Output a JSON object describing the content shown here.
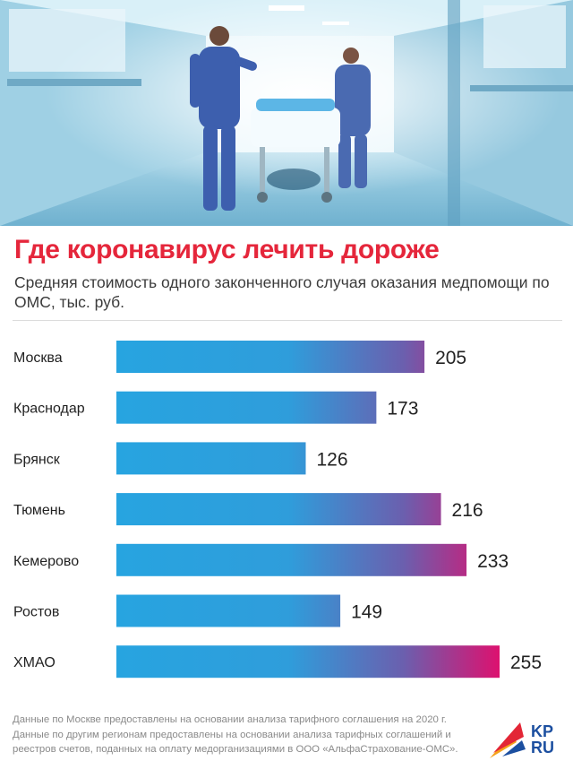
{
  "header": {
    "title": "Где коронавирус лечить дороже",
    "subtitle": "Средняя стоимость одного законченного случая оказания медпомощи по ОМС, тыс. руб."
  },
  "chart_data": {
    "type": "bar",
    "orientation": "horizontal",
    "categories": [
      "Москва",
      "Краснодар",
      "Брянск",
      "Тюмень",
      "Кемерово",
      "Ростов",
      "ХМАО"
    ],
    "values": [
      205,
      173,
      126,
      216,
      233,
      149,
      255
    ],
    "title": "Где коронавирус лечить дороже",
    "subtitle": "Средняя стоимость одного законченного случая оказания медпомощи по ОМС, тыс. руб.",
    "xlabel": "",
    "ylabel": "",
    "xlim": [
      0,
      255
    ],
    "grid": false,
    "legend": "none",
    "colors": {
      "bar_start": "#27a4e0",
      "bar_mid": "#2f9ddb",
      "bar_end": "#dd116f"
    }
  },
  "footnote": {
    "line1": "Данные по Москве предоставлены на основании анализа тарифного соглашения на 2020 г.",
    "line2": "Данные по другим регионам предоставлены на основании анализа тарифных соглашений и реестров счетов, поданных на оплату медорганизациями в ООО «АльфаСтрахование-ОМС»."
  },
  "logo": {
    "line1": "KP",
    "line2": "RU",
    "colors": [
      "#e32636",
      "#f6a21b",
      "#1c4fa0"
    ]
  },
  "hero": {
    "icon": "hospital-corridor-photo",
    "colors": [
      "#cfe9f4",
      "#7fb9d8",
      "#3a63a8",
      "#eef7fb"
    ]
  }
}
